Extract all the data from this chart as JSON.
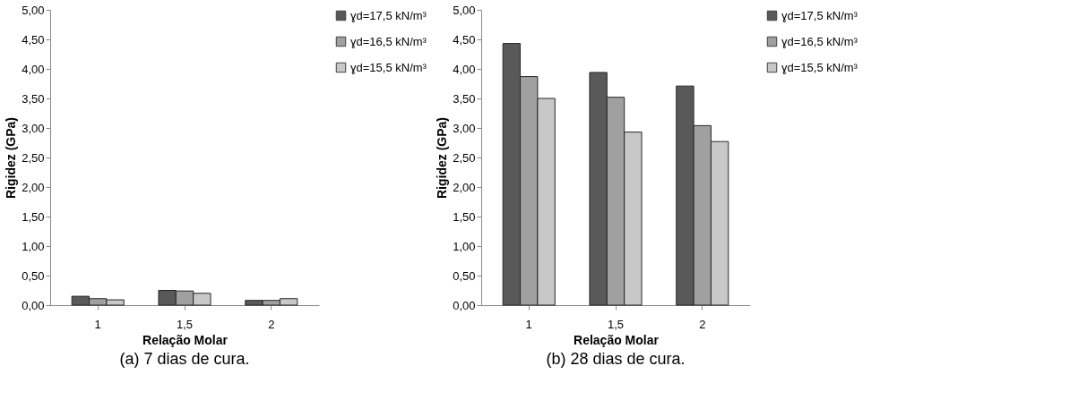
{
  "chart_data": [
    {
      "type": "bar",
      "title": "(a)  7 dias de cura.",
      "xlabel": "Relação Molar",
      "ylabel": "Rigidez (GPa)",
      "categories": [
        "1",
        "1,5",
        "2"
      ],
      "series": [
        {
          "name": "ɣd=17,5 kN/m³",
          "color": "#595959",
          "values": [
            0.15,
            0.25,
            0.08
          ]
        },
        {
          "name": "ɣd=16,5 kN/m³",
          "color": "#a0a0a0",
          "values": [
            0.11,
            0.24,
            0.08
          ]
        },
        {
          "name": "ɣd=15,5 kN/m³",
          "color": "#c8c8c8",
          "values": [
            0.09,
            0.2,
            0.11
          ]
        }
      ],
      "ylim": [
        0,
        5
      ],
      "yticks": [
        {
          "value": 0,
          "label": "0,00"
        },
        {
          "value": 0.5,
          "label": "0,50"
        },
        {
          "value": 1,
          "label": "1,00"
        },
        {
          "value": 1.5,
          "label": "1,50"
        },
        {
          "value": 2,
          "label": "2,00"
        },
        {
          "value": 2.5,
          "label": "2,50"
        },
        {
          "value": 3,
          "label": "3,00"
        },
        {
          "value": 3.5,
          "label": "3,50"
        },
        {
          "value": 4,
          "label": "4,00"
        },
        {
          "value": 4.5,
          "label": "4,50"
        },
        {
          "value": 5,
          "label": "5,00"
        }
      ],
      "grid": false,
      "legend": "right"
    },
    {
      "type": "bar",
      "title": "(b)  28 dias de cura.",
      "xlabel": "Relação Molar",
      "ylabel": "Rigidez (GPa)",
      "categories": [
        "1",
        "1,5",
        "2"
      ],
      "series": [
        {
          "name": "ɣd=17,5 kN/m³",
          "color": "#595959",
          "values": [
            4.43,
            3.94,
            3.71
          ]
        },
        {
          "name": "ɣd=16,5 kN/m³",
          "color": "#a0a0a0",
          "values": [
            3.87,
            3.52,
            3.04
          ]
        },
        {
          "name": "ɣd=15,5 kN/m³",
          "color": "#c8c8c8",
          "values": [
            3.5,
            2.93,
            2.77
          ]
        }
      ],
      "ylim": [
        0,
        5
      ],
      "yticks": [
        {
          "value": 0,
          "label": "0,00"
        },
        {
          "value": 0.5,
          "label": "0,50"
        },
        {
          "value": 1,
          "label": "1,00"
        },
        {
          "value": 1.5,
          "label": "1,50"
        },
        {
          "value": 2,
          "label": "2,00"
        },
        {
          "value": 2.5,
          "label": "2,50"
        },
        {
          "value": 3,
          "label": "3,00"
        },
        {
          "value": 3.5,
          "label": "3,50"
        },
        {
          "value": 4,
          "label": "4,00"
        },
        {
          "value": 4.5,
          "label": "4,50"
        },
        {
          "value": 5,
          "label": "5,00"
        }
      ],
      "grid": false,
      "legend": "right"
    }
  ]
}
